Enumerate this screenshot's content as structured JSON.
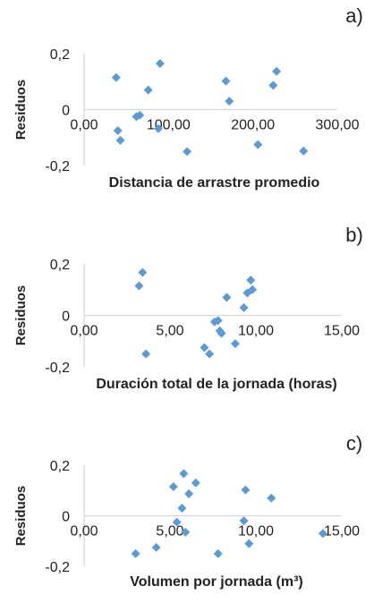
{
  "chart_data": [
    {
      "type": "scatter",
      "panel_label": "a)",
      "xlabel": "Distancia de arrastre promedio",
      "ylabel": "Residuos",
      "xlim": [
        0,
        300
      ],
      "ylim": [
        -0.2,
        0.2
      ],
      "xticks": [
        "0,00",
        "100,00",
        "200,00",
        "300,00"
      ],
      "yticks": [
        "0,2",
        "0",
        "-0,2"
      ],
      "grid": false,
      "marker_color": "#5b9bd5",
      "points": [
        {
          "x": 38,
          "y": 0.115
        },
        {
          "x": 40,
          "y": -0.075
        },
        {
          "x": 43,
          "y": -0.11
        },
        {
          "x": 62,
          "y": -0.025
        },
        {
          "x": 66,
          "y": -0.02
        },
        {
          "x": 76,
          "y": 0.07
        },
        {
          "x": 90,
          "y": 0.165
        },
        {
          "x": 88,
          "y": -0.068
        },
        {
          "x": 122,
          "y": -0.15
        },
        {
          "x": 168,
          "y": 0.102
        },
        {
          "x": 172,
          "y": 0.03
        },
        {
          "x": 206,
          "y": -0.125
        },
        {
          "x": 224,
          "y": 0.087
        },
        {
          "x": 228,
          "y": 0.137
        },
        {
          "x": 260,
          "y": -0.148
        }
      ]
    },
    {
      "type": "scatter",
      "panel_label": "b)",
      "xlabel": "Duración total de la jornada (horas)",
      "ylabel": "Residuos",
      "xlim": [
        0,
        15
      ],
      "ylim": [
        -0.2,
        0.2
      ],
      "xticks": [
        "0,00",
        "5,00",
        "10,00",
        "15,00"
      ],
      "yticks": [
        "0,2",
        "0",
        "-0,2"
      ],
      "grid": false,
      "marker_color": "#5b9bd5",
      "points": [
        {
          "x": 3.2,
          "y": 0.115
        },
        {
          "x": 3.4,
          "y": 0.167
        },
        {
          "x": 3.6,
          "y": -0.15
        },
        {
          "x": 7.0,
          "y": -0.125
        },
        {
          "x": 7.3,
          "y": -0.15
        },
        {
          "x": 7.6,
          "y": -0.025
        },
        {
          "x": 7.8,
          "y": -0.02
        },
        {
          "x": 7.9,
          "y": -0.06
        },
        {
          "x": 8.0,
          "y": -0.07
        },
        {
          "x": 8.3,
          "y": 0.07
        },
        {
          "x": 8.8,
          "y": -0.11
        },
        {
          "x": 9.3,
          "y": 0.03
        },
        {
          "x": 9.5,
          "y": 0.087
        },
        {
          "x": 9.7,
          "y": 0.137
        },
        {
          "x": 9.8,
          "y": 0.1
        }
      ]
    },
    {
      "type": "scatter",
      "panel_label": "c)",
      "xlabel": "Volumen por jornada (m³)",
      "ylabel": "Residuos",
      "xlim": [
        0,
        15
      ],
      "ylim": [
        -0.2,
        0.2
      ],
      "xticks": [
        "0,00",
        "5,00",
        "10,00",
        "15,00"
      ],
      "yticks": [
        "0,2",
        "0",
        "-0,2"
      ],
      "grid": false,
      "marker_color": "#5b9bd5",
      "points": [
        {
          "x": 3.0,
          "y": -0.15
        },
        {
          "x": 4.2,
          "y": -0.125
        },
        {
          "x": 5.2,
          "y": 0.115
        },
        {
          "x": 5.4,
          "y": -0.025
        },
        {
          "x": 5.7,
          "y": 0.03
        },
        {
          "x": 5.8,
          "y": 0.167
        },
        {
          "x": 5.9,
          "y": -0.065
        },
        {
          "x": 6.1,
          "y": 0.087
        },
        {
          "x": 6.5,
          "y": 0.13
        },
        {
          "x": 7.8,
          "y": -0.15
        },
        {
          "x": 9.3,
          "y": -0.02
        },
        {
          "x": 9.4,
          "y": 0.102
        },
        {
          "x": 9.6,
          "y": -0.11
        },
        {
          "x": 10.9,
          "y": 0.07
        },
        {
          "x": 13.9,
          "y": -0.07
        }
      ]
    }
  ]
}
